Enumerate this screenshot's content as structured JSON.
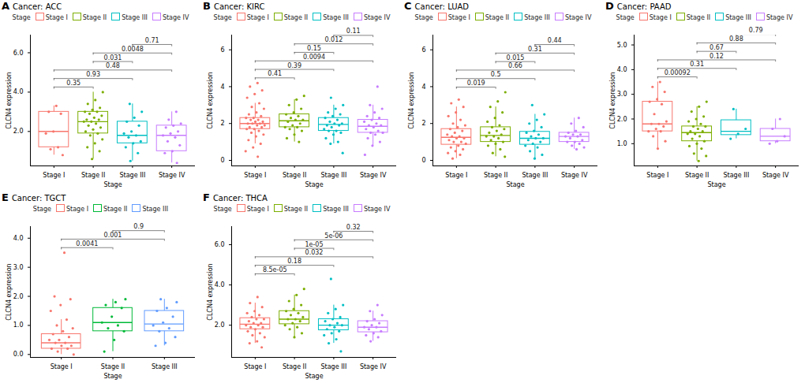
{
  "chart_data": [
    {
      "type": "box",
      "panel": "A",
      "title": "Cancer: ACC",
      "legend_title": "Stage",
      "x_label": "Stage",
      "y_label": "CLCN4 expression",
      "ylim": [
        0.25,
        6.9
      ],
      "yticks": [
        2,
        4,
        6
      ],
      "series": [
        {
          "name": "Stage I",
          "color": "#F8766D",
          "box": {
            "min": 0.8,
            "q1": 1.2,
            "median": 2.0,
            "q3": 3.0,
            "max": 3.3
          },
          "values": [
            3.3,
            3.0,
            2.9,
            2.0,
            1.9,
            1.2,
            1.1,
            0.8
          ]
        },
        {
          "name": "Stage II",
          "color": "#7CAE00",
          "box": {
            "min": 0.6,
            "q1": 1.9,
            "median": 2.5,
            "q3": 3.0,
            "max": 4.0
          },
          "values": [
            4.0,
            3.6,
            3.4,
            3.2,
            3.1,
            3.0,
            3.0,
            2.9,
            2.8,
            2.7,
            2.6,
            2.6,
            2.5,
            2.5,
            2.4,
            2.3,
            2.2,
            2.1,
            2.0,
            1.9,
            1.8,
            1.6,
            1.4,
            1.2,
            1.0,
            0.6
          ]
        },
        {
          "name": "Stage III",
          "color": "#00BFC4",
          "box": {
            "min": 0.5,
            "q1": 1.4,
            "median": 1.8,
            "q3": 2.5,
            "max": 3.4
          },
          "values": [
            3.4,
            3.0,
            2.7,
            2.5,
            2.3,
            2.0,
            1.9,
            1.8,
            1.7,
            1.5,
            1.4,
            1.2,
            0.9,
            0.5
          ]
        },
        {
          "name": "Stage IV",
          "color": "#C77CFF",
          "box": {
            "min": 0.4,
            "q1": 1.0,
            "median": 1.8,
            "q3": 2.3,
            "max": 3.0
          },
          "values": [
            3.0,
            2.6,
            2.4,
            2.3,
            2.2,
            2.0,
            1.9,
            1.8,
            1.7,
            1.5,
            1.3,
            1.0,
            0.9,
            0.4
          ]
        }
      ],
      "comparisons": [
        {
          "groups": [
            "Stage I",
            "Stage II"
          ],
          "label": "0.35"
        },
        {
          "groups": [
            "Stage I",
            "Stage III"
          ],
          "label": "0.93"
        },
        {
          "groups": [
            "Stage I",
            "Stage IV"
          ],
          "label": "0.48"
        },
        {
          "groups": [
            "Stage II",
            "Stage III"
          ],
          "label": "0.031"
        },
        {
          "groups": [
            "Stage II",
            "Stage IV"
          ],
          "label": "0.0048"
        },
        {
          "groups": [
            "Stage III",
            "Stage IV"
          ],
          "label": "0.71"
        }
      ]
    },
    {
      "type": "box",
      "panel": "B",
      "title": "Cancer: KIRC",
      "legend_title": "Stage",
      "x_label": "Stage",
      "y_label": "CLCN4 expression",
      "ylim": [
        -0.3,
        6.8
      ],
      "yticks": [
        0,
        2,
        4,
        6
      ],
      "series": [
        {
          "name": "Stage I",
          "color": "#F8766D",
          "box": {
            "min": 0.9,
            "q1": 1.7,
            "median": 2.0,
            "q3": 2.3,
            "max": 3.1
          },
          "values": [
            4.2,
            4.0,
            3.8,
            3.6,
            3.4,
            3.1,
            2.9,
            2.8,
            2.6,
            2.5,
            2.4,
            2.3,
            2.3,
            2.2,
            2.2,
            2.1,
            2.1,
            2.0,
            2.0,
            2.0,
            1.9,
            1.9,
            1.8,
            1.8,
            1.7,
            1.7,
            1.6,
            1.5,
            1.4,
            1.3,
            1.1,
            0.9,
            0.7,
            0.5,
            0.2
          ]
        },
        {
          "name": "Stage II",
          "color": "#7CAE00",
          "box": {
            "min": 1.0,
            "q1": 1.8,
            "median": 2.15,
            "q3": 2.5,
            "max": 3.3
          },
          "values": [
            3.5,
            3.3,
            3.0,
            2.8,
            2.6,
            2.5,
            2.4,
            2.3,
            2.2,
            2.2,
            2.1,
            2.0,
            1.9,
            1.8,
            1.8,
            1.7,
            1.6,
            1.4,
            1.2,
            1.0
          ]
        },
        {
          "name": "Stage III",
          "color": "#00BFC4",
          "box": {
            "min": 0.9,
            "q1": 1.6,
            "median": 1.95,
            "q3": 2.3,
            "max": 3.0
          },
          "values": [
            3.4,
            3.0,
            2.8,
            2.6,
            2.5,
            2.4,
            2.3,
            2.2,
            2.1,
            2.0,
            2.0,
            1.9,
            1.9,
            1.8,
            1.7,
            1.6,
            1.6,
            1.5,
            1.4,
            1.2,
            1.0,
            0.9,
            0.4
          ]
        },
        {
          "name": "Stage IV",
          "color": "#C77CFF",
          "box": {
            "min": 0.8,
            "q1": 1.5,
            "median": 1.85,
            "q3": 2.2,
            "max": 3.0
          },
          "values": [
            4.0,
            3.0,
            2.8,
            2.6,
            2.4,
            2.3,
            2.2,
            2.1,
            2.0,
            1.9,
            1.9,
            1.8,
            1.7,
            1.6,
            1.5,
            1.5,
            1.4,
            1.2,
            1.0,
            0.8,
            0.3
          ]
        }
      ],
      "comparisons": [
        {
          "groups": [
            "Stage I",
            "Stage II"
          ],
          "label": "0.41"
        },
        {
          "groups": [
            "Stage I",
            "Stage III"
          ],
          "label": "0.39"
        },
        {
          "groups": [
            "Stage I",
            "Stage IV"
          ],
          "label": "0.0094"
        },
        {
          "groups": [
            "Stage II",
            "Stage III"
          ],
          "label": "0.15"
        },
        {
          "groups": [
            "Stage II",
            "Stage IV"
          ],
          "label": "0.012"
        },
        {
          "groups": [
            "Stage III",
            "Stage IV"
          ],
          "label": "0.11"
        }
      ]
    },
    {
      "type": "box",
      "panel": "C",
      "title": "Cancer: LUAD",
      "legend_title": "Stage",
      "x_label": "Stage",
      "y_label": "CLCN4 expression",
      "ylim": [
        -0.3,
        6.8
      ],
      "yticks": [
        0,
        2,
        4,
        6
      ],
      "series": [
        {
          "name": "Stage I",
          "color": "#F8766D",
          "box": {
            "min": 0.1,
            "q1": 0.85,
            "median": 1.25,
            "q3": 1.7,
            "max": 2.9
          },
          "values": [
            3.3,
            3.1,
            2.9,
            2.6,
            2.4,
            2.2,
            2.0,
            1.9,
            1.8,
            1.7,
            1.6,
            1.5,
            1.4,
            1.3,
            1.3,
            1.2,
            1.2,
            1.1,
            1.0,
            1.0,
            0.9,
            0.8,
            0.7,
            0.6,
            0.5,
            0.4,
            0.3,
            0.1
          ]
        },
        {
          "name": "Stage II",
          "color": "#7CAE00",
          "box": {
            "min": 0.2,
            "q1": 1.0,
            "median": 1.35,
            "q3": 1.8,
            "max": 2.9
          },
          "values": [
            3.7,
            3.2,
            2.9,
            2.6,
            2.3,
            2.1,
            1.9,
            1.8,
            1.7,
            1.6,
            1.5,
            1.4,
            1.3,
            1.3,
            1.2,
            1.1,
            1.0,
            0.9,
            0.8,
            0.6,
            0.4,
            0.2
          ]
        },
        {
          "name": "Stage III",
          "color": "#00BFC4",
          "box": {
            "min": 0.1,
            "q1": 0.85,
            "median": 1.2,
            "q3": 1.55,
            "max": 2.5
          },
          "values": [
            3.0,
            2.5,
            2.2,
            2.0,
            1.8,
            1.6,
            1.5,
            1.4,
            1.3,
            1.2,
            1.2,
            1.1,
            1.0,
            0.9,
            0.8,
            0.7,
            0.5,
            0.3,
            0.1
          ]
        },
        {
          "name": "Stage IV",
          "color": "#C77CFF",
          "box": {
            "min": 0.6,
            "q1": 1.0,
            "median": 1.3,
            "q3": 1.5,
            "max": 2.3
          },
          "values": [
            2.3,
            2.0,
            1.8,
            1.6,
            1.5,
            1.4,
            1.4,
            1.3,
            1.3,
            1.2,
            1.1,
            1.0,
            1.0,
            0.9,
            0.8,
            0.7,
            0.6
          ]
        }
      ],
      "comparisons": [
        {
          "groups": [
            "Stage I",
            "Stage II"
          ],
          "label": "0.019"
        },
        {
          "groups": [
            "Stage I",
            "Stage III"
          ],
          "label": "0.5"
        },
        {
          "groups": [
            "Stage I",
            "Stage IV"
          ],
          "label": "0.66"
        },
        {
          "groups": [
            "Stage II",
            "Stage III"
          ],
          "label": "0.015"
        },
        {
          "groups": [
            "Stage II",
            "Stage IV"
          ],
          "label": "0.31"
        },
        {
          "groups": [
            "Stage III",
            "Stage IV"
          ],
          "label": "0.44"
        }
      ]
    },
    {
      "type": "box",
      "panel": "D",
      "title": "Cancer: PAAD",
      "legend_title": "Stage",
      "x_label": "Stage",
      "y_label": "CLCN4 expression",
      "ylim": [
        0.1,
        5.4
      ],
      "yticks": [
        1,
        2,
        3,
        4,
        5
      ],
      "series": [
        {
          "name": "Stage I",
          "color": "#F8766D",
          "box": {
            "min": 0.8,
            "q1": 1.5,
            "median": 1.8,
            "q3": 2.7,
            "max": 3.5
          },
          "values": [
            3.5,
            3.3,
            3.1,
            2.8,
            2.7,
            2.6,
            2.2,
            1.9,
            1.8,
            1.8,
            1.7,
            1.6,
            1.5,
            1.5,
            1.3,
            1.1,
            0.8
          ]
        },
        {
          "name": "Stage II",
          "color": "#7CAE00",
          "box": {
            "min": 0.3,
            "q1": 1.1,
            "median": 1.45,
            "q3": 1.7,
            "max": 2.5
          },
          "values": [
            2.7,
            2.5,
            2.3,
            2.1,
            2.0,
            1.9,
            1.8,
            1.7,
            1.7,
            1.6,
            1.5,
            1.5,
            1.4,
            1.4,
            1.3,
            1.2,
            1.1,
            1.0,
            0.9,
            0.8,
            0.6,
            0.5,
            0.3
          ]
        },
        {
          "name": "Stage III",
          "color": "#00BFC4",
          "box": {
            "min": 1.2,
            "q1": 1.35,
            "median": 1.5,
            "q3": 1.95,
            "max": 2.4
          },
          "values": [
            2.4,
            1.6,
            1.4,
            1.2
          ]
        },
        {
          "name": "Stage IV",
          "color": "#C77CFF",
          "box": {
            "min": 1.0,
            "q1": 1.1,
            "median": 1.3,
            "q3": 1.6,
            "max": 2.0
          },
          "values": [
            2.0,
            1.6,
            1.3,
            1.1,
            1.0
          ]
        }
      ],
      "comparisons": [
        {
          "groups": [
            "Stage I",
            "Stage II"
          ],
          "label": "0.00092"
        },
        {
          "groups": [
            "Stage I",
            "Stage III"
          ],
          "label": "0.31"
        },
        {
          "groups": [
            "Stage I",
            "Stage IV"
          ],
          "label": "0.12"
        },
        {
          "groups": [
            "Stage II",
            "Stage III"
          ],
          "label": "0.67"
        },
        {
          "groups": [
            "Stage II",
            "Stage IV"
          ],
          "label": "0.88"
        },
        {
          "groups": [
            "Stage III",
            "Stage IV"
          ],
          "label": "0.79"
        }
      ]
    },
    {
      "type": "box",
      "panel": "E",
      "title": "Cancer: TGCT",
      "legend_title": "Stage",
      "x_label": "Stage",
      "y_label": "CLCN4 expression",
      "ylim": [
        -0.1,
        4.4
      ],
      "yticks": [
        0,
        1,
        2,
        3,
        4
      ],
      "series": [
        {
          "name": "Stage I",
          "color": "#F8766D",
          "box": {
            "min": 0.0,
            "q1": 0.2,
            "median": 0.4,
            "q3": 0.7,
            "max": 1.2
          },
          "values": [
            3.5,
            2.0,
            1.9,
            1.7,
            1.5,
            1.2,
            1.0,
            0.9,
            0.8,
            0.7,
            0.6,
            0.5,
            0.5,
            0.4,
            0.4,
            0.3,
            0.3,
            0.2,
            0.2,
            0.1,
            0.0
          ]
        },
        {
          "name": "Stage II",
          "color": "#00BA38",
          "box": {
            "min": 0.1,
            "q1": 0.8,
            "median": 1.1,
            "q3": 1.6,
            "max": 1.9
          },
          "values": [
            1.9,
            1.8,
            1.7,
            1.6,
            1.3,
            1.1,
            1.0,
            0.9,
            0.8,
            0.5,
            0.1
          ]
        },
        {
          "name": "Stage III",
          "color": "#619CFF",
          "box": {
            "min": 0.3,
            "q1": 0.8,
            "median": 1.05,
            "q3": 1.5,
            "max": 1.9
          },
          "values": [
            1.9,
            1.8,
            1.6,
            1.5,
            1.3,
            1.1,
            1.0,
            0.9,
            0.8,
            0.6,
            0.4,
            0.3
          ]
        }
      ],
      "comparisons": [
        {
          "groups": [
            "Stage I",
            "Stage II"
          ],
          "label": "0.0041"
        },
        {
          "groups": [
            "Stage I",
            "Stage III"
          ],
          "label": "0.001"
        },
        {
          "groups": [
            "Stage II",
            "Stage III"
          ],
          "label": "0.9"
        }
      ]
    },
    {
      "type": "box",
      "panel": "F",
      "title": "Cancer: THCA",
      "legend_title": "Stage",
      "x_label": "Stage",
      "y_label": "CLCN4 expression",
      "ylim": [
        0.4,
        6.9
      ],
      "yticks": [
        2,
        4,
        6
      ],
      "series": [
        {
          "name": "Stage I",
          "color": "#F8766D",
          "box": {
            "min": 1.1,
            "q1": 1.8,
            "median": 2.05,
            "q3": 2.35,
            "max": 3.1
          },
          "values": [
            3.4,
            3.1,
            2.9,
            2.7,
            2.6,
            2.5,
            2.4,
            2.3,
            2.3,
            2.2,
            2.1,
            2.1,
            2.0,
            2.0,
            1.9,
            1.9,
            1.8,
            1.7,
            1.6,
            1.5,
            1.4,
            1.2,
            1.1,
            0.9
          ]
        },
        {
          "name": "Stage II",
          "color": "#7CAE00",
          "box": {
            "min": 1.4,
            "q1": 2.05,
            "median": 2.3,
            "q3": 2.7,
            "max": 3.5
          },
          "values": [
            3.8,
            3.5,
            3.2,
            3.0,
            2.8,
            2.7,
            2.6,
            2.5,
            2.4,
            2.3,
            2.3,
            2.2,
            2.1,
            2.0,
            1.9,
            1.8,
            1.6,
            1.4
          ]
        },
        {
          "name": "Stage III",
          "color": "#00BFC4",
          "box": {
            "min": 1.1,
            "q1": 1.75,
            "median": 2.0,
            "q3": 2.3,
            "max": 3.0
          },
          "values": [
            4.3,
            3.0,
            2.8,
            2.6,
            2.4,
            2.3,
            2.2,
            2.1,
            2.0,
            2.0,
            1.9,
            1.8,
            1.7,
            1.6,
            1.5,
            1.3,
            1.1,
            0.7
          ]
        },
        {
          "name": "Stage IV",
          "color": "#C77CFF",
          "box": {
            "min": 1.2,
            "q1": 1.65,
            "median": 1.9,
            "q3": 2.2,
            "max": 2.7
          },
          "values": [
            3.0,
            2.7,
            2.5,
            2.3,
            2.2,
            2.1,
            2.0,
            1.9,
            1.9,
            1.8,
            1.7,
            1.6,
            1.5,
            1.4,
            1.2
          ]
        }
      ],
      "comparisons": [
        {
          "groups": [
            "Stage I",
            "Stage II"
          ],
          "label": "8.5e-05"
        },
        {
          "groups": [
            "Stage I",
            "Stage III"
          ],
          "label": "0.18"
        },
        {
          "groups": [
            "Stage I",
            "Stage IV"
          ],
          "label": "0.032"
        },
        {
          "groups": [
            "Stage II",
            "Stage III"
          ],
          "label": "1e-05"
        },
        {
          "groups": [
            "Stage II",
            "Stage IV"
          ],
          "label": "5e-06"
        },
        {
          "groups": [
            "Stage III",
            "Stage IV"
          ],
          "label": "0.32"
        }
      ]
    }
  ]
}
